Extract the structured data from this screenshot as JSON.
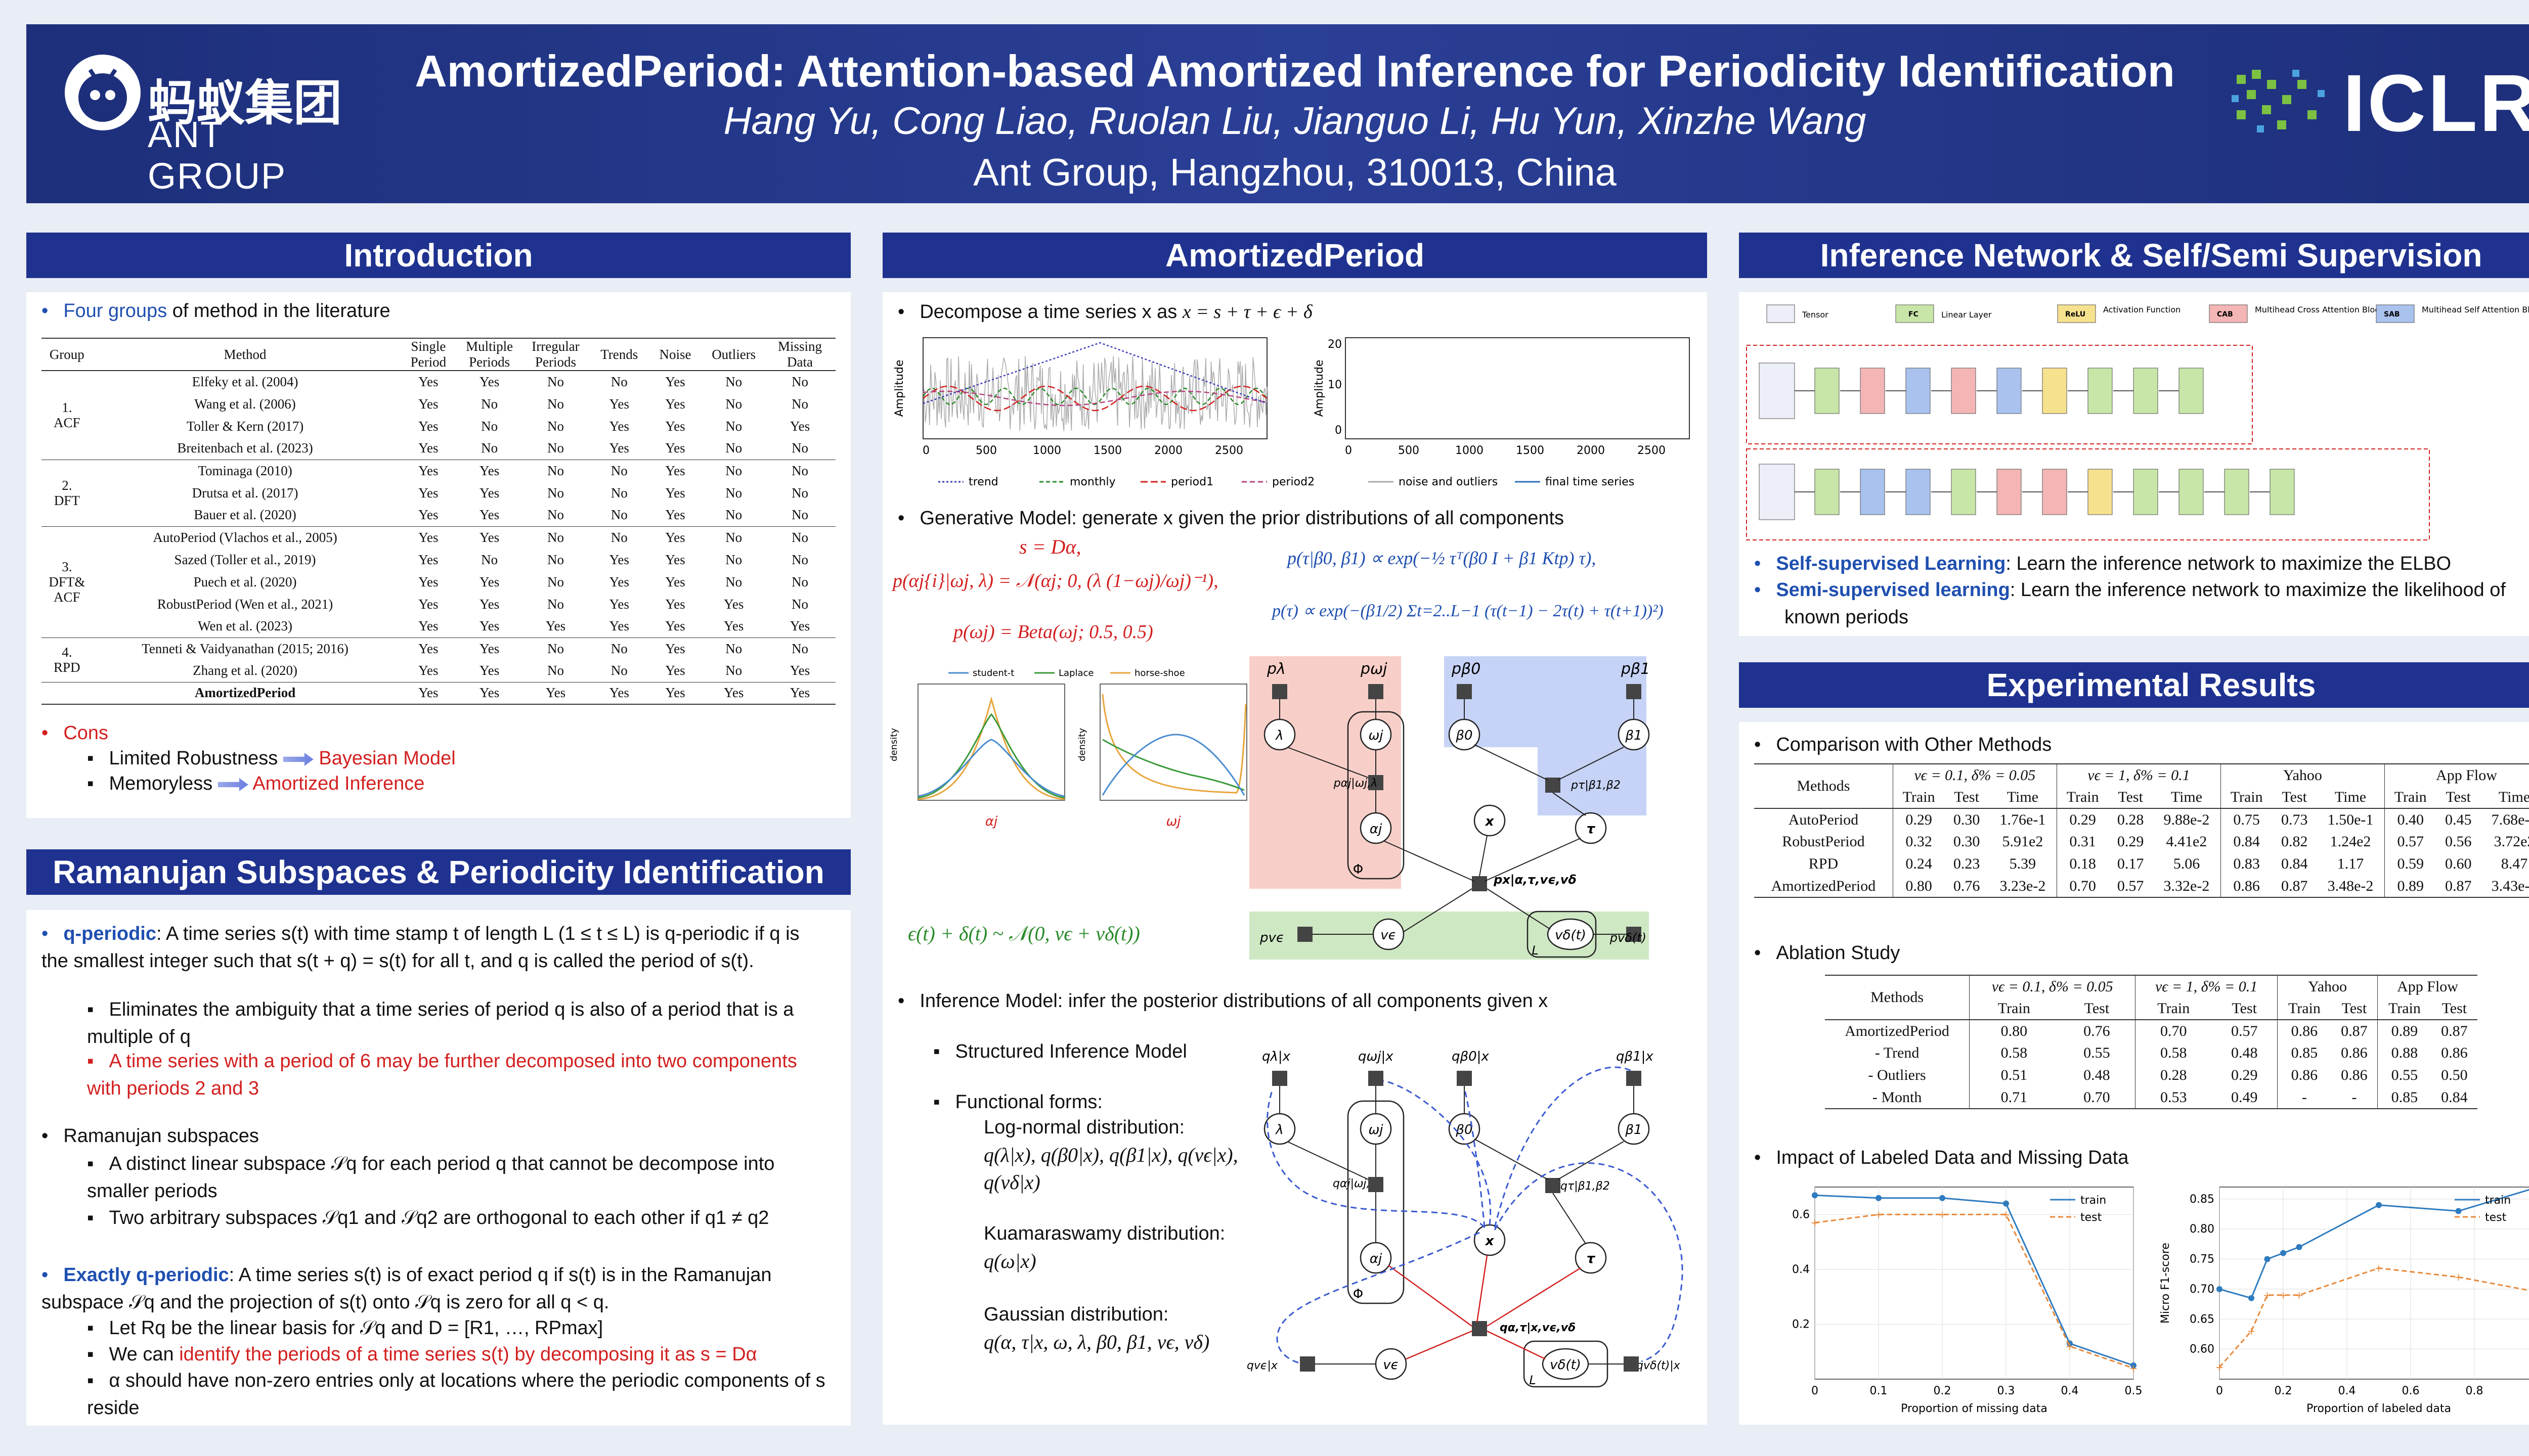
{
  "header": {
    "title": "AmortizedPeriod: Attention-based Amortized Inference for Periodicity Identification",
    "authors": "Hang Yu, Cong Liao, Ruolan Liu, Jianguo Li, Hu Yun, Xinzhe Wang",
    "affiliation": "Ant Group, Hangzhou, 310013, China",
    "ant_logo_cn": "蚂蚁集团",
    "ant_logo_en": "ANT GROUP",
    "iclr_logo": "ICLR"
  },
  "sections": {
    "intro": "Introduction",
    "ramanujan": "Ramanujan Subspaces & Periodicity Identification",
    "amortized": "AmortizedPeriod",
    "inference": "Inference Network & Self/Semi Supervision",
    "results": "Experimental Results"
  },
  "intro": {
    "groups_highlight": "Four groups",
    "groups_rest": " of method in the literature",
    "table": {
      "headers": [
        "Group",
        "Method",
        "Single Period",
        "Multiple Periods",
        "Irregular Periods",
        "Trends",
        "Noise",
        "Outliers",
        "Missing Data"
      ],
      "groups": [
        {
          "name": "1.\nACF",
          "rows": [
            [
              "Elfeky et al. (2004)",
              "Yes",
              "Yes",
              "No",
              "No",
              "Yes",
              "No",
              "No"
            ],
            [
              "Wang et al. (2006)",
              "Yes",
              "No",
              "No",
              "Yes",
              "Yes",
              "No",
              "No"
            ],
            [
              "Toller & Kern (2017)",
              "Yes",
              "No",
              "No",
              "Yes",
              "Yes",
              "No",
              "Yes"
            ],
            [
              "Breitenbach et al. (2023)",
              "Yes",
              "No",
              "No",
              "Yes",
              "Yes",
              "No",
              "No"
            ]
          ]
        },
        {
          "name": "2.\nDFT",
          "rows": [
            [
              "Tominaga (2010)",
              "Yes",
              "Yes",
              "No",
              "No",
              "Yes",
              "No",
              "No"
            ],
            [
              "Drutsa et al. (2017)",
              "Yes",
              "Yes",
              "No",
              "No",
              "Yes",
              "No",
              "No"
            ],
            [
              "Bauer et al. (2020)",
              "Yes",
              "Yes",
              "No",
              "No",
              "Yes",
              "No",
              "No"
            ]
          ]
        },
        {
          "name": "3.\nDFT&\nACF",
          "rows": [
            [
              "AutoPeriod (Vlachos et al., 2005)",
              "Yes",
              "Yes",
              "No",
              "No",
              "Yes",
              "No",
              "No"
            ],
            [
              "Sazed (Toller et al., 2019)",
              "Yes",
              "No",
              "No",
              "Yes",
              "Yes",
              "No",
              "No"
            ],
            [
              "Puech et al. (2020)",
              "Yes",
              "Yes",
              "No",
              "Yes",
              "Yes",
              "No",
              "No"
            ],
            [
              "RobustPeriod (Wen et al., 2021)",
              "Yes",
              "Yes",
              "No",
              "Yes",
              "Yes",
              "Yes",
              "No"
            ],
            [
              "Wen et al. (2023)",
              "Yes",
              "Yes",
              "Yes",
              "Yes",
              "Yes",
              "Yes",
              "Yes"
            ]
          ]
        },
        {
          "name": "4.\nRPD",
          "rows": [
            [
              "Tenneti & Vaidyanathan (2015; 2016)",
              "Yes",
              "Yes",
              "No",
              "No",
              "Yes",
              "No",
              "No"
            ],
            [
              "Zhang et al. (2020)",
              "Yes",
              "Yes",
              "No",
              "No",
              "Yes",
              "No",
              "Yes"
            ]
          ]
        }
      ],
      "final_row": [
        "AmortizedPeriod",
        "Yes",
        "Yes",
        "Yes",
        "Yes",
        "Yes",
        "Yes",
        "Yes"
      ]
    },
    "cons_label": "Cons",
    "cons": [
      {
        "left": "Limited Robustness",
        "right": "Bayesian Model"
      },
      {
        "left": "Memoryless",
        "right": "Amortized Inference"
      }
    ]
  },
  "ramanujan": {
    "qperiodic_label": "q-periodic",
    "qperiodic_text": ": A time series s(t) with time stamp t of length L (1 ≤ t ≤ L) is q-periodic if q is the smallest integer such that s(t + q) = s(t) for all t, and q is called the period of s(t).",
    "sub1": "Eliminates the ambiguity that a time series of period q is also of a period that is a multiple of q",
    "sub2": "A time series with a period of 6 may be further decomposed into two components with periods 2 and 3",
    "subspaces_label": "Ramanujan subspaces",
    "sub3": "A distinct linear subspace 𝒮q for each period q that cannot be decompose into smaller periods",
    "sub4": "Two arbitrary subspaces 𝒮q1 and 𝒮q2 are orthogonal to each other if q1 ≠ q2",
    "exact_label": "Exactly q-periodic",
    "exact_text": ": A time series s(t) is of exact period q if s(t) is in the Ramanujan subspace 𝒮q and the projection of s(t) onto 𝒮q is zero for all q < q.",
    "sub5": "Let Rq be the linear basis for 𝒮q and D = [R1, …, RPmax]",
    "sub6_pre": "We can ",
    "sub6_red": "identify the periods of a time series s(t) by decomposing it as s = Dα",
    "sub7": "α should have non-zero entries only at locations where the periodic components of s reside"
  },
  "amortized": {
    "decompose_pre": "Decompose a time series x as ",
    "decompose_eq": "x = s + τ + ϵ + δ",
    "generative": "Generative Model: generate x given the prior distributions of all components",
    "inference": "Inference Model: infer the posterior distributions of all components given x",
    "structured": "Structured Inference Model",
    "functional": "Functional forms:",
    "lognormal": "Log-normal distribution:",
    "lognormal_eq": "q(λ|x), q(β0|x), q(β1|x), q(vϵ|x), q(vδ|x)",
    "kuma": "Kuamaraswamy distribution:",
    "kuma_eq": "q(ω|x)",
    "gauss": "Gaussian distribution:",
    "gauss_eq": "q(α, τ|x, ω, λ, β0, β1, vϵ, vδ)",
    "eq_s": "s = Dα,",
    "eq_alpha": "p(αj{i}|ωj, λ) = 𝒩(αj; 0, (λ (1−ωj)/ωj)⁻¹),",
    "eq_omega": "p(ωj) = Beta(ωj; 0.5, 0.5)",
    "eq_tau1": "p(τ|β0, β1) ∝ exp(−½ τᵀ(β0 I + β1 Ktp) τ),",
    "eq_tau2": "p(τ) ∝ exp(−(β1/2) Σt=2..L−1 (τ(t−1) − 2τ(t) + τ(t+1))²)",
    "eq_noise": "ϵ(t) + δ(t) ~ 𝒩(0, vϵ + vδ(t))",
    "ts_legend": [
      "trend",
      "monthly",
      "period1",
      "period2",
      "noise and outliers",
      "final time series"
    ],
    "ts_ylabel": "Amplitude",
    "density_legend": [
      "student-t",
      "Laplace",
      "horse-shoe"
    ],
    "density_ylabel": "density",
    "density_xlabel1": "αj",
    "density_xlabel2": "ωj",
    "graph_nodes": {
      "p_lambda": "pλ",
      "p_omega": "pωj",
      "p_beta0": "pβ0",
      "p_beta1": "pβ1",
      "lambda": "λ",
      "omega": "ωj",
      "beta0": "β0",
      "beta1": "β1",
      "p_alpha": "pαj|ωj,λ",
      "alpha": "αj",
      "x": "x",
      "tau": "τ",
      "p_tau": "pτ|β1,β2",
      "p_x": "px|α,τ,vϵ,vδ",
      "p_ve": "pvϵ",
      "ve": "vϵ",
      "vd": "vδ(t)",
      "p_vd": "pvδ(t)",
      "phi": "Φ",
      "L": "L"
    },
    "inf_nodes": {
      "q_lambda": "qλ|x",
      "q_omega": "qωj|x",
      "q_beta0": "qβ0|x",
      "q_beta1": "qβ1|x",
      "q_alpha": "qαj|ωj,λ",
      "q_tau": "qτ|β1,β2",
      "q_x": "qα,τ|x,vϵ,vδ",
      "q_ve": "qvϵ|x",
      "q_vd": "qvδ(t)|x"
    }
  },
  "inference_net": {
    "legend": [
      "Tensor",
      "Linear Layer",
      "Activation Function",
      "Multihead Cross Attention Block",
      "Multihead Self Attention Block"
    ],
    "legend_boxes": [
      "FC",
      "ReLU",
      "CAB",
      "SAB"
    ],
    "self_label": "Self-supervised Learning",
    "self_text": ": Learn the inference network to maximize the ELBO",
    "semi_label": "Semi-supervised learning",
    "semi_text": ": Learn the inference network to maximize the likelihood of known periods"
  },
  "results": {
    "comparison_title": "Comparison with Other Methods",
    "comparison": {
      "groups": [
        "vϵ = 0.1, δ% = 0.05",
        "vϵ = 1, δ% = 0.1",
        "Yahoo",
        "App Flow"
      ],
      "subheaders": [
        "Train",
        "Test",
        "Time"
      ],
      "methods_label": "Methods",
      "rows": [
        {
          "method": "AutoPeriod",
          "values": [
            "0.29",
            "0.30",
            "1.76e-1",
            "0.29",
            "0.28",
            "9.88e-2",
            "0.75",
            "0.73",
            "1.50e-1",
            "0.40",
            "0.45",
            "7.68e-2"
          ]
        },
        {
          "method": "RobustPeriod",
          "values": [
            "0.32",
            "0.30",
            "5.91e2",
            "0.31",
            "0.29",
            "4.41e2",
            "0.84",
            "0.82",
            "1.24e2",
            "0.57",
            "0.56",
            "3.72e2"
          ]
        },
        {
          "method": "RPD",
          "values": [
            "0.24",
            "0.23",
            "5.39",
            "0.18",
            "0.17",
            "5.06",
            "0.83",
            "0.84",
            "1.17",
            "0.59",
            "0.60",
            "8.47"
          ]
        },
        {
          "method": "AmortizedPeriod",
          "values": [
            "0.80",
            "0.76",
            "3.23e-2",
            "0.70",
            "0.57",
            "3.32e-2",
            "0.86",
            "0.87",
            "3.48e-2",
            "0.89",
            "0.87",
            "3.43e-2"
          ]
        }
      ]
    },
    "ablation_title": "Ablation Study",
    "ablation": {
      "groups": [
        "vϵ = 0.1, δ% = 0.05",
        "vϵ = 1, δ% = 0.1",
        "Yahoo",
        "App Flow"
      ],
      "subheaders": [
        "Train",
        "Test"
      ],
      "methods_label": "Methods",
      "rows": [
        {
          "method": "AmortizedPeriod",
          "values": [
            "0.80",
            "0.76",
            "0.70",
            "0.57",
            "0.86",
            "0.87",
            "0.89",
            "0.87"
          ]
        },
        {
          "method": "- Trend",
          "values": [
            "0.58",
            "0.55",
            "0.58",
            "0.48",
            "0.85",
            "0.86",
            "0.88",
            "0.86"
          ]
        },
        {
          "method": "- Outliers",
          "values": [
            "0.51",
            "0.48",
            "0.28",
            "0.29",
            "0.86",
            "0.86",
            "0.55",
            "0.50"
          ]
        },
        {
          "method": "- Month",
          "values": [
            "0.71",
            "0.70",
            "0.53",
            "0.49",
            "-",
            "-",
            "0.85",
            "0.84"
          ]
        }
      ]
    },
    "impact_title": "Impact of Labeled Data and Missing Data"
  },
  "chart_data": [
    {
      "type": "line",
      "xlabel": "Proportion of missing data",
      "ylabel": "",
      "x": [
        0.0,
        0.1,
        0.2,
        0.3,
        0.4,
        0.5
      ],
      "series": [
        {
          "name": "train",
          "values": [
            0.67,
            0.66,
            0.66,
            0.64,
            0.13,
            0.05
          ]
        },
        {
          "name": "test",
          "values": [
            0.57,
            0.6,
            0.6,
            0.6,
            0.12,
            0.04
          ]
        }
      ],
      "xlim": [
        0.0,
        0.5
      ],
      "ylim": [
        0.0,
        0.7
      ],
      "yticks": [
        0.2,
        0.4,
        0.6
      ],
      "xticks": [
        0.0,
        0.1,
        0.2,
        0.3,
        0.4,
        0.5
      ],
      "legend": "top-right",
      "grid": true
    },
    {
      "type": "line",
      "xlabel": "Proportion of labeled data",
      "ylabel": "Micro F1-score",
      "x": [
        0.0,
        0.1,
        0.15,
        0.2,
        0.25,
        0.5,
        0.75,
        1.0
      ],
      "series": [
        {
          "name": "train",
          "values": [
            0.7,
            0.685,
            0.75,
            0.76,
            0.77,
            0.84,
            0.83,
            0.87
          ]
        },
        {
          "name": "test",
          "values": [
            0.57,
            0.63,
            0.69,
            0.69,
            0.69,
            0.735,
            0.72,
            0.695
          ]
        }
      ],
      "xlim": [
        0.0,
        1.0
      ],
      "ylim": [
        0.55,
        0.87
      ],
      "yticks": [
        0.6,
        0.65,
        0.7,
        0.75,
        0.8,
        0.85
      ],
      "xticks": [
        0.0,
        0.2,
        0.4,
        0.6,
        0.8,
        1.0
      ],
      "legend": "top-right",
      "grid": true
    }
  ],
  "colors": {
    "header_bg": "#1d2f7a",
    "section_bg": "#1f3290",
    "red": "#d32020",
    "blue": "#1f4fb0",
    "train_line": "#2e7bbf",
    "test_line": "#e8893a"
  }
}
